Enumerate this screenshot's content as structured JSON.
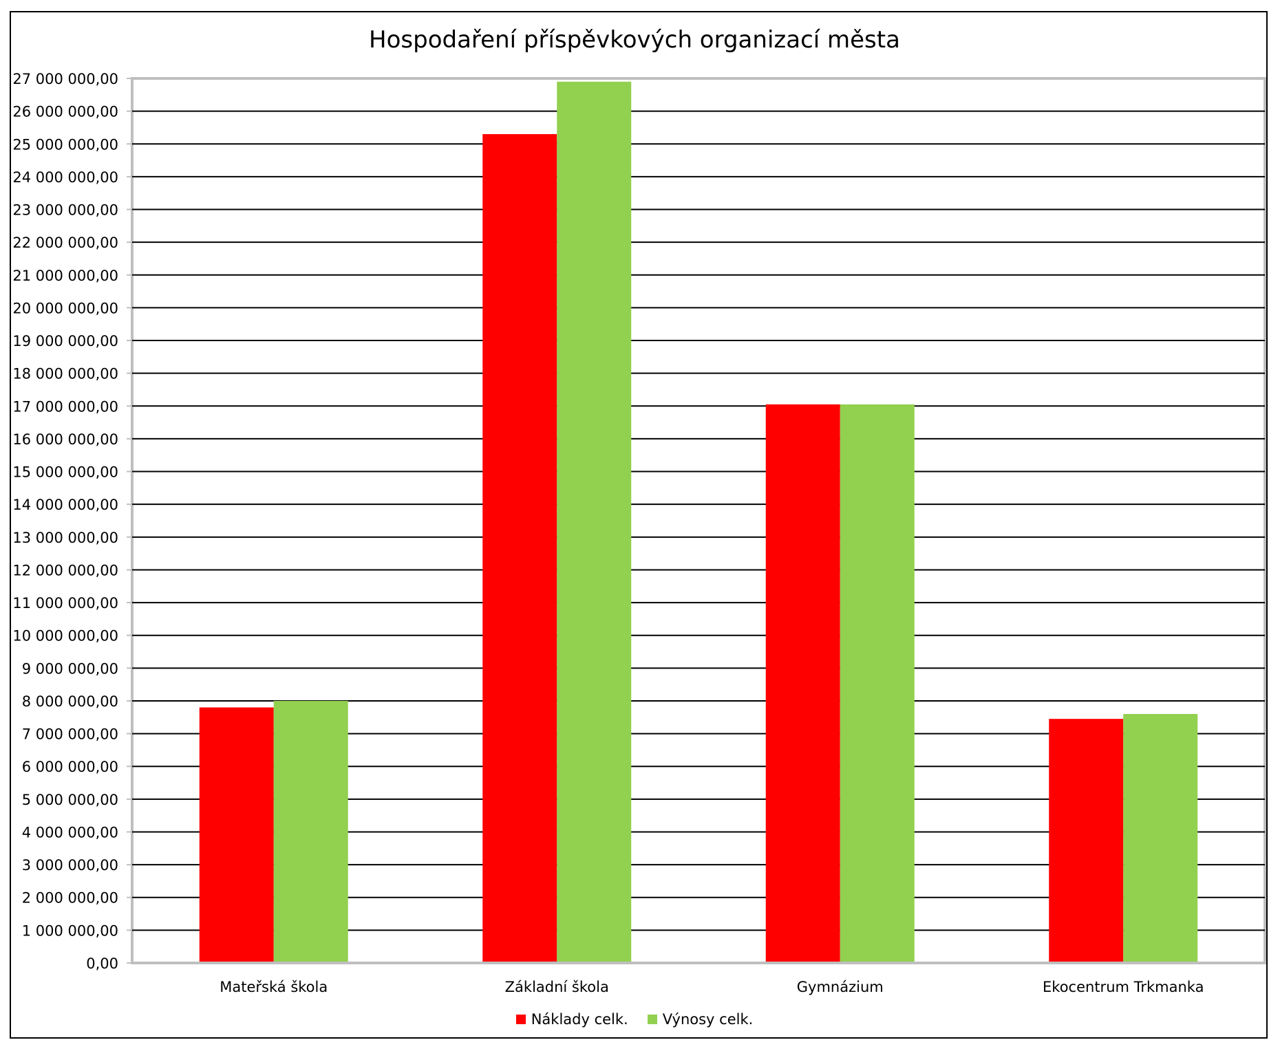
{
  "chart_data": {
    "type": "bar",
    "title": "Hospodaření příspěvkových organizací města",
    "xlabel": "",
    "ylabel": "",
    "ylim": [
      0,
      27000000
    ],
    "y_tick_step": 1000000,
    "y_tick_labels": [
      "0,00",
      "1 000 000,00",
      "2 000 000,00",
      "3 000 000,00",
      "4 000 000,00",
      "5 000 000,00",
      "6 000 000,00",
      "7 000 000,00",
      "8 000 000,00",
      "9 000 000,00",
      "10 000 000,00",
      "11 000 000,00",
      "12 000 000,00",
      "13 000 000,00",
      "14 000 000,00",
      "15 000 000,00",
      "16 000 000,00",
      "17 000 000,00",
      "18 000 000,00",
      "19 000 000,00",
      "20 000 000,00",
      "21 000 000,00",
      "22 000 000,00",
      "23 000 000,00",
      "24 000 000,00",
      "25 000 000,00",
      "26 000 000,00",
      "27 000 000,00"
    ],
    "categories": [
      "Mateřská škola",
      "Základní škola",
      "Gymnázium",
      "Ekocentrum Trkmanka"
    ],
    "series": [
      {
        "name": "Náklady celk.",
        "color": "#ff0000",
        "values": [
          7800000,
          25300000,
          17050000,
          7450000
        ]
      },
      {
        "name": "Výnosy celk.",
        "color": "#92d050",
        "values": [
          8000000,
          26900000,
          17050000,
          7600000
        ]
      }
    ],
    "grid": true,
    "legend_position": "bottom"
  }
}
